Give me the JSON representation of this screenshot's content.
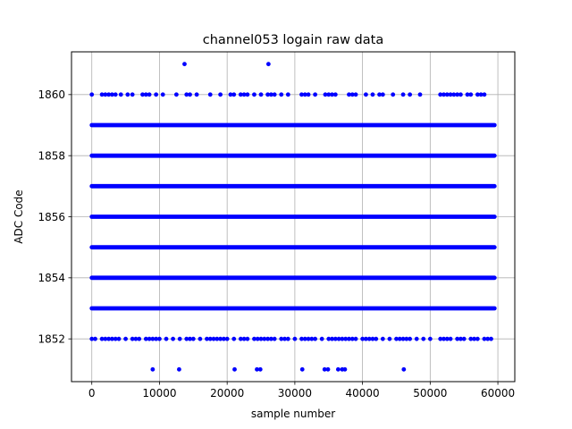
{
  "chart_data": {
    "type": "scatter",
    "title": "channel053 logain raw data",
    "xlabel": "sample number",
    "ylabel": "ADC Code",
    "xlim": [
      -3000,
      62500
    ],
    "ylim": [
      1850.6,
      1861.4
    ],
    "xticks": [
      0,
      10000,
      20000,
      30000,
      40000,
      50000,
      60000
    ],
    "yticks": [
      1852,
      1854,
      1856,
      1858,
      1860
    ],
    "grid": true,
    "marker_color": "#0000ff",
    "x_range": [
      0,
      59500
    ],
    "dense_levels": [
      1853,
      1854,
      1855,
      1856,
      1857,
      1858,
      1859
    ],
    "level_1860_x": [
      0,
      1500,
      2000,
      2500,
      3000,
      3500,
      4300,
      5300,
      6000,
      7500,
      8000,
      8500,
      9500,
      10500,
      12500,
      14000,
      14500,
      15500,
      17500,
      19000,
      20500,
      21000,
      22000,
      22500,
      23000,
      24000,
      25000,
      26000,
      26500,
      27000,
      28000,
      29000,
      31000,
      31500,
      32000,
      33000,
      34500,
      35000,
      35500,
      36000,
      38000,
      38500,
      39000,
      40500,
      41500,
      42500,
      43000,
      44500,
      46000,
      47000,
      48500,
      51500,
      52000,
      52500,
      53000,
      53500,
      54000,
      54500,
      55500,
      56000,
      57000,
      57500,
      58000
    ],
    "level_1852_x": [
      0,
      500,
      1500,
      2000,
      2500,
      3000,
      3500,
      4000,
      5000,
      6000,
      6500,
      7000,
      8000,
      8500,
      9000,
      9500,
      10000,
      11000,
      12000,
      13000,
      14000,
      14500,
      15000,
      16000,
      17000,
      17500,
      18000,
      18500,
      19000,
      19500,
      20000,
      21000,
      22000,
      22500,
      23000,
      24000,
      24500,
      25000,
      25500,
      26000,
      26500,
      27000,
      28000,
      28500,
      29000,
      30000,
      31000,
      31500,
      32000,
      32500,
      33000,
      34000,
      35000,
      35500,
      36000,
      36500,
      37000,
      37500,
      38000,
      38500,
      39000,
      40000,
      40500,
      41000,
      41500,
      42000,
      43000,
      44000,
      45000,
      45500,
      46000,
      46500,
      47000,
      48000,
      49000,
      50000,
      51500,
      52000,
      52500,
      53000,
      54000,
      54500,
      55000,
      56000,
      56500,
      57000,
      58000,
      58500,
      59000
    ],
    "level_1861_x": [
      13700,
      26100
    ],
    "level_1851_x": [
      9000,
      12900,
      21100,
      24400,
      24900,
      31100,
      34400,
      34900,
      36400,
      37000,
      37400,
      46100
    ]
  }
}
